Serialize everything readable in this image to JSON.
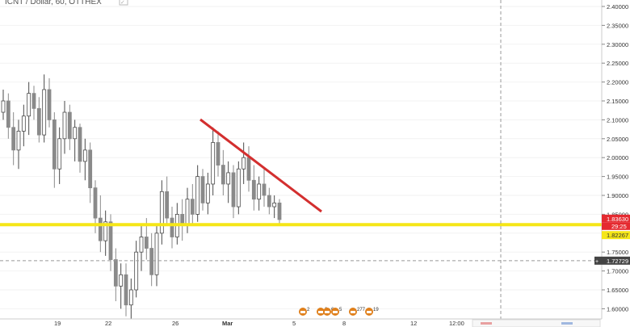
{
  "header": {
    "symbol_title": "ICNT / Dollar, 60, OTTHEX"
  },
  "price_axis": {
    "ticks": [
      "2.40000",
      "2.35000",
      "2.30000",
      "2.25000",
      "2.20000",
      "2.15000",
      "2.10000",
      "2.05000",
      "2.00000",
      "1.95000",
      "1.90000",
      "1.85000",
      "1.80000",
      "1.75000",
      "1.70000",
      "1.65000",
      "1.60000"
    ],
    "tick_values": [
      2.4,
      2.35,
      2.3,
      2.25,
      2.2,
      2.15,
      2.1,
      2.05,
      2.0,
      1.95,
      1.9,
      1.85,
      1.8,
      1.75,
      1.7,
      1.65,
      1.6
    ],
    "last_price": "1.83630",
    "countdown": "29:25",
    "price_line_label": "1.82267",
    "price_line_value": 1.82267,
    "crosshair_label": "1.72729",
    "crosshair_value": 1.72729
  },
  "time_axis": {
    "labels": [
      "19",
      "22",
      "26",
      "Mar",
      "5",
      "8",
      "12",
      "12:00"
    ]
  },
  "event_markers": [
    {
      "count": "2",
      "color": "#e0801c"
    },
    {
      "count": "2",
      "color": "#e0801c"
    },
    {
      "count": "6",
      "color": "#e0801c"
    },
    {
      "count": "5",
      "color": "#e0801c"
    },
    {
      "count": "277",
      "color": "#e0801c"
    },
    {
      "count": "19",
      "color": "#e0801c"
    }
  ],
  "colors": {
    "up_candle": "#4a4a4a",
    "down_candle": "#8a8a8a",
    "trendline": "#d32f2f",
    "support_line": "#f5e617",
    "label_bg": "#e52a30",
    "axis_text": "#333333"
  },
  "candles": [
    [
      2.12,
      2.18,
      2.1,
      2.15
    ],
    [
      2.15,
      2.17,
      2.05,
      2.08
    ],
    [
      2.08,
      2.12,
      1.98,
      2.02
    ],
    [
      2.02,
      2.1,
      1.97,
      2.07
    ],
    [
      2.07,
      2.14,
      2.03,
      2.11
    ],
    [
      2.11,
      2.2,
      2.06,
      2.17
    ],
    [
      2.17,
      2.19,
      2.1,
      2.13
    ],
    [
      2.13,
      2.16,
      2.04,
      2.06
    ],
    [
      2.06,
      2.22,
      2.04,
      2.18
    ],
    [
      2.18,
      2.21,
      2.08,
      2.1
    ],
    [
      2.1,
      2.12,
      1.92,
      1.97
    ],
    [
      1.97,
      2.08,
      1.93,
      2.05
    ],
    [
      2.05,
      2.15,
      2.01,
      2.12
    ],
    [
      2.12,
      2.14,
      2.02,
      2.05
    ],
    [
      2.05,
      2.1,
      1.99,
      2.08
    ],
    [
      2.08,
      2.09,
      1.96,
      1.99
    ],
    [
      1.99,
      2.05,
      1.94,
      2.02
    ],
    [
      2.02,
      2.04,
      1.88,
      1.92
    ],
    [
      1.92,
      1.94,
      1.8,
      1.84
    ],
    [
      1.84,
      1.9,
      1.75,
      1.78
    ],
    [
      1.78,
      1.86,
      1.74,
      1.83
    ],
    [
      1.83,
      1.85,
      1.7,
      1.73
    ],
    [
      1.73,
      1.76,
      1.62,
      1.66
    ],
    [
      1.66,
      1.72,
      1.6,
      1.69
    ],
    [
      1.69,
      1.72,
      1.58,
      1.61
    ],
    [
      1.61,
      1.68,
      1.57,
      1.65
    ],
    [
      1.65,
      1.78,
      1.63,
      1.75
    ],
    [
      1.75,
      1.82,
      1.7,
      1.79
    ],
    [
      1.79,
      1.84,
      1.73,
      1.76
    ],
    [
      1.76,
      1.8,
      1.66,
      1.69
    ],
    [
      1.69,
      1.82,
      1.66,
      1.8
    ],
    [
      1.8,
      1.94,
      1.77,
      1.91
    ],
    [
      1.91,
      1.95,
      1.82,
      1.84
    ],
    [
      1.84,
      1.87,
      1.76,
      1.79
    ],
    [
      1.79,
      1.88,
      1.77,
      1.85
    ],
    [
      1.85,
      1.89,
      1.78,
      1.82
    ],
    [
      1.82,
      1.92,
      1.8,
      1.89
    ],
    [
      1.89,
      1.93,
      1.82,
      1.85
    ],
    [
      1.85,
      1.98,
      1.83,
      1.95
    ],
    [
      1.95,
      1.97,
      1.86,
      1.88
    ],
    [
      1.88,
      1.96,
      1.85,
      1.93
    ],
    [
      1.93,
      2.08,
      1.9,
      2.04
    ],
    [
      2.04,
      2.07,
      1.95,
      1.98
    ],
    [
      1.98,
      2.02,
      1.9,
      1.93
    ],
    [
      1.93,
      1.99,
      1.88,
      1.96
    ],
    [
      1.96,
      1.98,
      1.84,
      1.87
    ],
    [
      1.87,
      1.99,
      1.85,
      1.97
    ],
    [
      1.97,
      2.04,
      1.93,
      2.0
    ],
    [
      2.0,
      2.03,
      1.91,
      1.94
    ],
    [
      1.94,
      1.98,
      1.86,
      1.89
    ],
    [
      1.89,
      1.95,
      1.86,
      1.93
    ],
    [
      1.93,
      1.97,
      1.87,
      1.9
    ],
    [
      1.9,
      1.92,
      1.85,
      1.87
    ],
    [
      1.87,
      1.9,
      1.84,
      1.88
    ],
    [
      1.88,
      1.89,
      1.82,
      1.836
    ]
  ]
}
